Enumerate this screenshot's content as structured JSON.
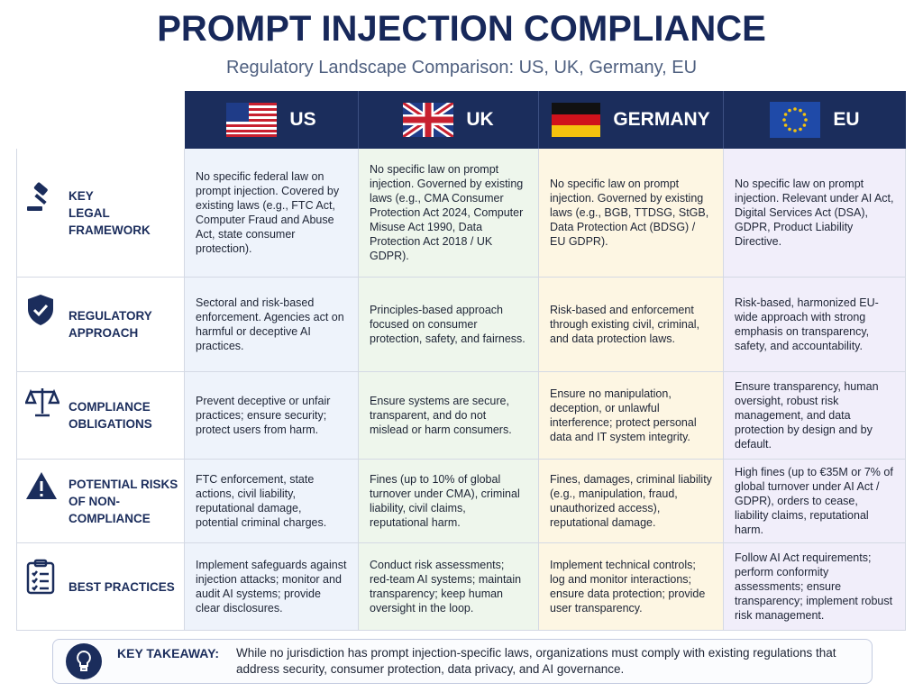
{
  "header": {
    "title": "PROMPT INJECTION COMPLIANCE",
    "subtitle": "Regulatory Landscape Comparison: US, UK, Germany, EU"
  },
  "columns": [
    {
      "name": "US"
    },
    {
      "name": "UK"
    },
    {
      "name": "GERMANY"
    },
    {
      "name": "EU"
    }
  ],
  "rows": [
    {
      "label": [
        "KEY",
        "LEGAL FRAMEWORK"
      ],
      "cells": [
        "No specific federal law on prompt injection. Covered by existing laws (e.g., FTC Act, Computer Fraud and Abuse Act, state consumer protection).",
        "No specific law on prompt injection. Governed by existing laws (e.g., CMA Consumer Protection Act 2024, Computer Misuse Act 1990, Data Protection Act 2018 / UK GDPR).",
        "No specific law on prompt injection. Governed by existing laws (e.g., BGB, TTDSG, StGB, Data Protection Act (BDSG) / EU GDPR).",
        "No specific law on prompt injection. Relevant under AI Act, Digital Services Act (DSA), GDPR, Product Liability Directive."
      ]
    },
    {
      "label": [
        "REGULATORY",
        "APPROACH"
      ],
      "cells": [
        "Sectoral and risk-based enforcement. Agencies act on harmful or deceptive AI practices.",
        "Principles-based approach focused on consumer protection, safety, and fairness.",
        "Risk-based and enforcement through existing civil, criminal, and data protection laws.",
        "Risk-based, harmonized EU-wide approach with strong emphasis on transparency, safety, and accountability."
      ]
    },
    {
      "label": [
        "COMPLIANCE",
        "OBLIGATIONS"
      ],
      "cells": [
        "Prevent deceptive or unfair practices; ensure security; protect users from harm.",
        "Ensure systems are secure, transparent, and do not mislead or harm consumers.",
        "Ensure no manipulation, deception, or unlawful interference; protect personal data and IT system integrity.",
        "Ensure transparency, human oversight, robust risk management, and data protection by design and by default."
      ]
    },
    {
      "label": [
        "POTENTIAL RISKS",
        "OF NON-COMPLIANCE"
      ],
      "cells": [
        "FTC enforcement, state actions, civil liability, reputational damage, potential criminal charges.",
        "Fines (up to 10% of global turnover under CMA), criminal liability, civil claims, reputational harm.",
        "Fines, damages, criminal liability (e.g., manipulation, fraud, unauthorized access), reputational damage.",
        "High fines (up to €35M or 7% of global turnover under AI Act / GDPR), orders to cease, liability claims, reputational harm."
      ]
    },
    {
      "label": [
        "BEST PRACTICES"
      ],
      "cells": [
        "Implement safeguards against injection attacks; monitor and audit AI systems; provide clear disclosures.",
        "Conduct risk assessments; red-team AI systems; maintain transparency; keep human oversight in the loop.",
        "Implement technical controls; log and monitor interactions; ensure data protection; provide user transparency.",
        "Follow AI Act requirements; perform conformity assessments; ensure transparency; implement robust risk management."
      ]
    }
  ],
  "takeaway": {
    "label": "KEY TAKEAWAY:",
    "text": "While no jurisdiction has prompt injection-specific laws, organizations must comply with existing regulations that address security, consumer protection, data privacy, and AI governance."
  }
}
